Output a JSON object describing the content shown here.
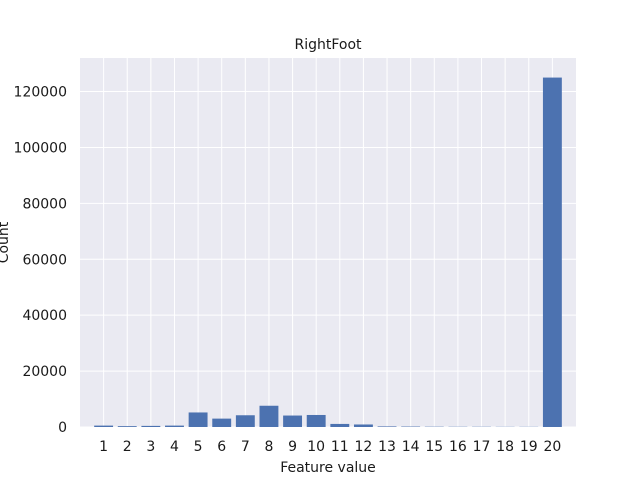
{
  "chart_data": {
    "type": "bar",
    "title": "RightFoot",
    "xlabel": "Feature value",
    "ylabel": "Count",
    "categories": [
      "1",
      "2",
      "3",
      "4",
      "5",
      "6",
      "7",
      "8",
      "9",
      "10",
      "11",
      "12",
      "13",
      "14",
      "15",
      "16",
      "17",
      "18",
      "19",
      "20"
    ],
    "values": [
      500,
      300,
      400,
      500,
      5200,
      3000,
      4200,
      7600,
      4100,
      4300,
      1100,
      900,
      200,
      150,
      100,
      80,
      80,
      60,
      60,
      125000
    ],
    "ylim": [
      0,
      132000
    ],
    "yticks": [
      0,
      20000,
      40000,
      60000,
      80000,
      100000,
      120000
    ],
    "grid": true,
    "colors": {
      "bar": "#4c72b0",
      "background": "#eaeaf2",
      "grid": "#ffffff"
    }
  }
}
